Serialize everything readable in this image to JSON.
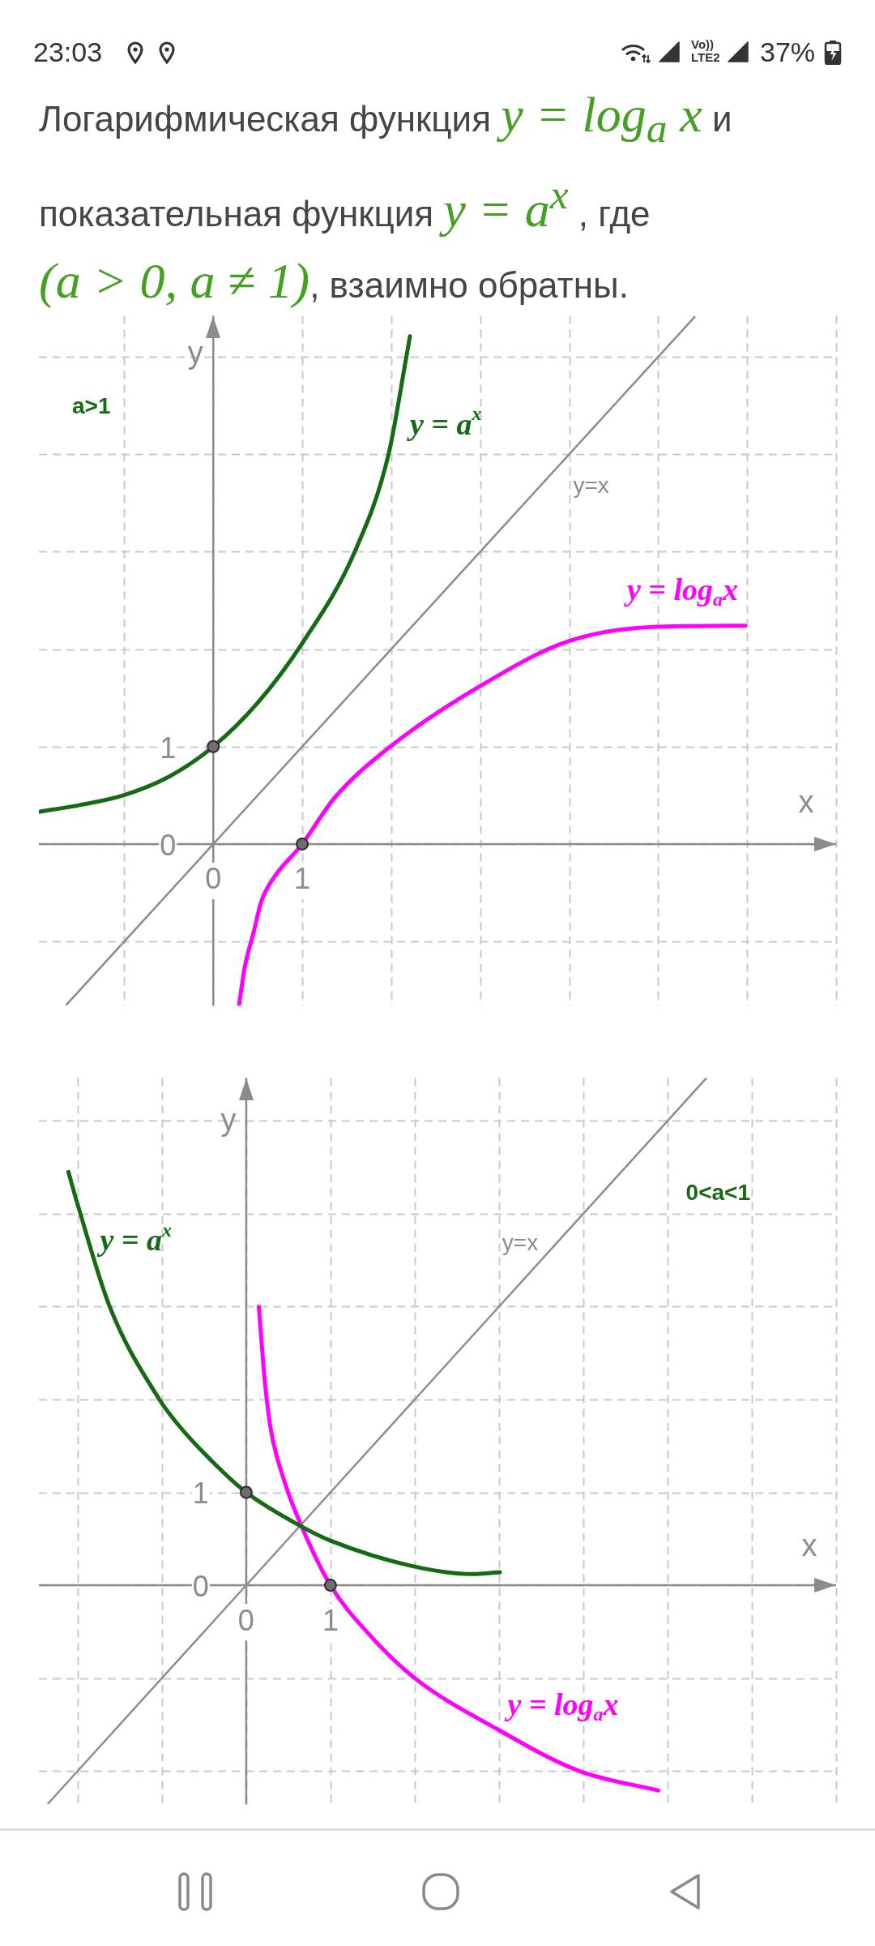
{
  "chart_data": [
    {
      "type": "line",
      "title": "Логарифмическая функция y = log$_{a}$ x и показательная функция y = a$^{x}$ , где (a > 0, a ≠ 1), взаимно обратны.",
      "xlabel": "x",
      "ylabel": "y",
      "annotations": [
        "a>1",
        "23:03",
        "Vo))",
        "LTE2",
        "37%"
      ],
      "series": [
        {
          "name": "y = a$^{x}$",
          "color": "#146b14",
          "x": [
            -1.96,
            -1.5,
            -1.01,
            -0.5,
            0,
            0.5,
            1.0,
            1.59,
            1.97,
            2.17,
            2.21
          ],
          "values": [
            0.33,
            0.4,
            0.5,
            0.69,
            1,
            1.45,
            2.06,
            3.0,
            4.0,
            5.0,
            5.21
          ]
        },
        {
          "name": "y=x",
          "color": "#8c8c8c",
          "x": [
            -1.65,
            5.41
          ],
          "values": [
            -1.65,
            5.41
          ]
        },
        {
          "name": "y = log$_{a}$x",
          "color": "#ff00ff",
          "x": [
            0.29,
            0.355,
            0.45,
            0.54,
            0.67,
            1,
            1.36,
            1.99,
            2.98,
            3.99,
            4.99,
            5.98
          ],
          "values": [
            -1.65,
            -1.26,
            -0.92,
            -0.59,
            -0.36,
            0,
            0.47,
            1.0,
            1.61,
            2.08,
            2.23,
            2.24
          ]
        },
        {
          "type": "scatter",
          "color": "#6e6e6e",
          "marker": "circle",
          "x": [
            0,
            1
          ],
          "values": [
            1,
            0
          ]
        }
      ],
      "marker": "none",
      "grid": true,
      "legend": false,
      "xlim": [
        -1.96,
        7
      ],
      "ylim": [
        -1.66,
        5.42
      ],
      "xticks": [
        {
          "value": -1,
          "label": null
        },
        {
          "value": 0,
          "label": "0"
        },
        {
          "value": 1,
          "label": "1"
        },
        {
          "value": 2,
          "label": null
        },
        {
          "value": 3,
          "label": null
        },
        {
          "value": 4,
          "label": null
        },
        {
          "value": 5,
          "label": null
        },
        {
          "value": 6,
          "label": null
        },
        {
          "value": 7,
          "label": null
        }
      ],
      "yticks": [
        {
          "value": -1,
          "label": null
        },
        {
          "value": 0,
          "label": "0"
        },
        {
          "value": 1,
          "label": "1"
        },
        {
          "value": 2,
          "label": null
        },
        {
          "value": 3,
          "label": null
        },
        {
          "value": 4,
          "label": null
        },
        {
          "value": 5,
          "label": null
        }
      ]
    },
    {
      "type": "line",
      "xlabel": "x",
      "ylabel": "y",
      "annotations": [
        "0<a<1"
      ],
      "series": [
        {
          "name": "y = a$^{x}$",
          "color": "#146b14",
          "x": [
            -2.11,
            -2.0,
            -1.62,
            -1.03,
            -0.8,
            -0.4,
            0,
            0.66,
            1.0,
            2.0,
            2.68,
            3.01
          ],
          "values": [
            4.45,
            4.1,
            3.0,
            2.0,
            1.72,
            1.33,
            1,
            0.63,
            0.48,
            0.2,
            0.12,
            0.14
          ]
        },
        {
          "name": "y=x",
          "color": "#8c8c8c",
          "x": [
            -2.35,
            5.46
          ],
          "values": [
            -2.35,
            5.46
          ]
        },
        {
          "name": "y = log$_{a}$x",
          "color": "#ff00ff",
          "x": [
            0.15,
            0.22,
            0.29,
            0.46,
            0.66,
            1,
            1.45,
            2.0,
            3.0,
            3.95,
            4.89
          ],
          "values": [
            3.0,
            2.21,
            1.69,
            1.1,
            0.63,
            0,
            -0.52,
            -1.0,
            -1.56,
            -2.0,
            -2.21
          ]
        },
        {
          "type": "scatter",
          "color": "#6e6e6e",
          "marker": "circle",
          "x": [
            0,
            1
          ],
          "values": [
            1,
            0
          ]
        }
      ],
      "marker": "none",
      "grid": true,
      "legend": false,
      "xlim": [
        -2.46,
        7
      ],
      "ylim": [
        -2.36,
        5.46
      ],
      "xticks": [
        {
          "value": -2,
          "label": null
        },
        {
          "value": -1,
          "label": null
        },
        {
          "value": 0,
          "label": "0"
        },
        {
          "value": 1,
          "label": "1"
        },
        {
          "value": 2,
          "label": null
        },
        {
          "value": 3,
          "label": null
        },
        {
          "value": 4,
          "label": null
        },
        {
          "value": 5,
          "label": null
        },
        {
          "value": 6,
          "label": null
        },
        {
          "value": 7,
          "label": null
        }
      ],
      "yticks": [
        {
          "value": -2,
          "label": null
        },
        {
          "value": -1,
          "label": null
        },
        {
          "value": 0,
          "label": "0"
        },
        {
          "value": 1,
          "label": "1"
        },
        {
          "value": 2,
          "label": null
        },
        {
          "value": 3,
          "label": null
        },
        {
          "value": 4,
          "label": null
        },
        {
          "value": 5,
          "label": null
        }
      ]
    }
  ]
}
